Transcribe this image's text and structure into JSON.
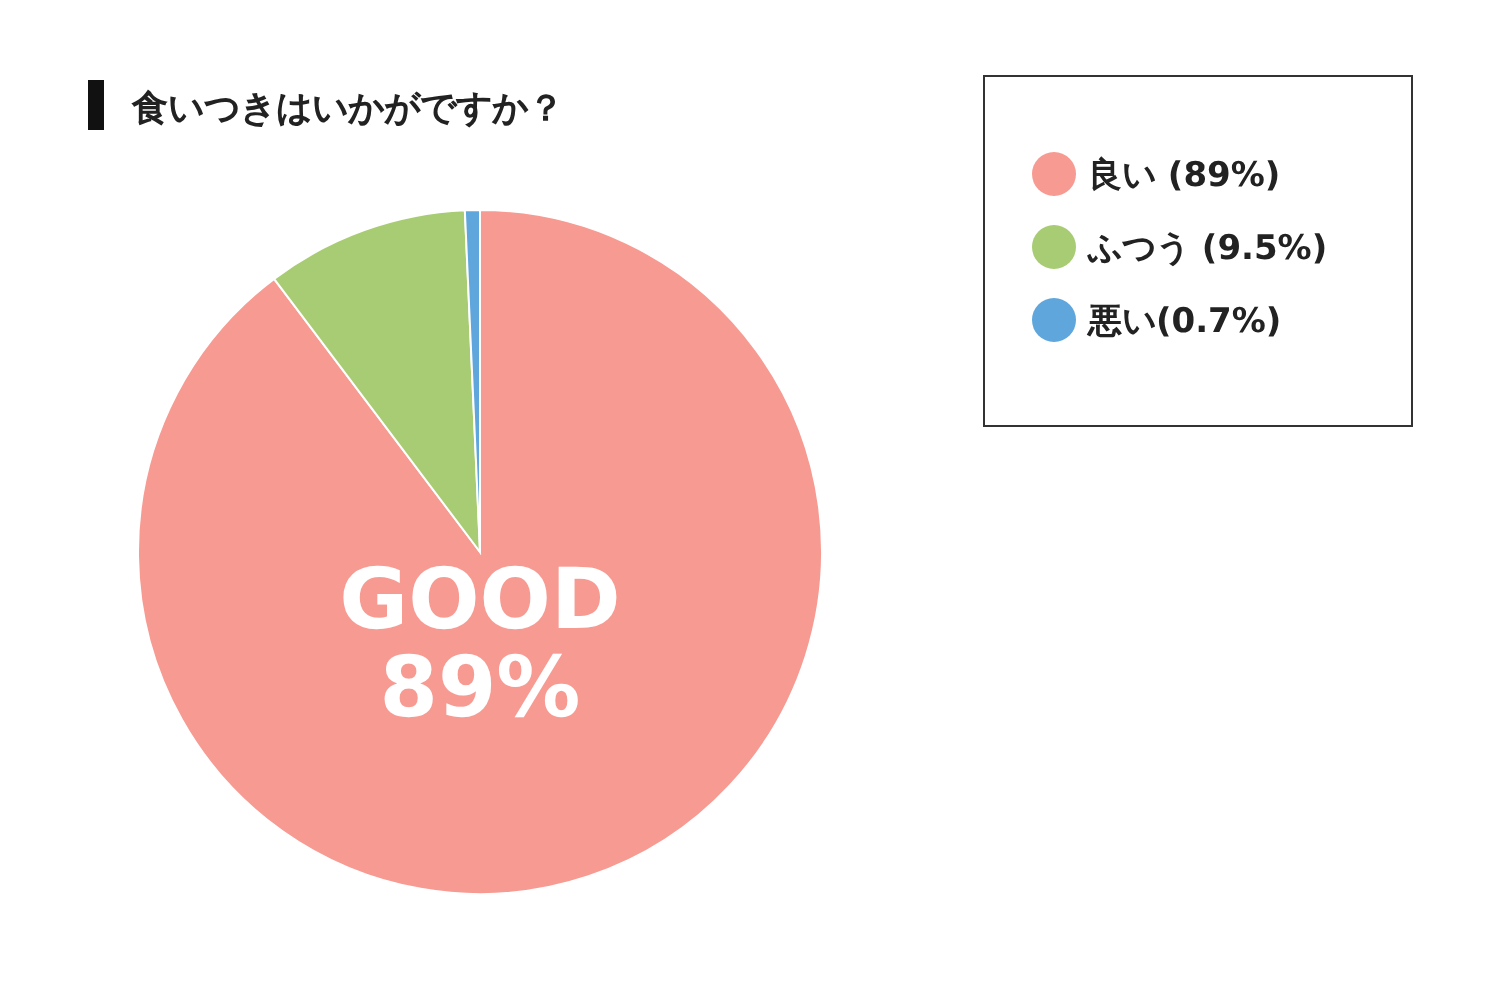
{
  "chart_data": {
    "type": "pie",
    "title": "食いつきはいかがですか？",
    "categories": [
      "良い (89%)",
      "ふつう (9.5%)",
      "悪い(0.7%)"
    ],
    "values": [
      89,
      9.5,
      0.7
    ],
    "colors": [
      "#f79a92",
      "#a8cc73",
      "#5fa6dc"
    ],
    "legend": "top right",
    "annotations": [
      "GOOD\n89%"
    ]
  }
}
